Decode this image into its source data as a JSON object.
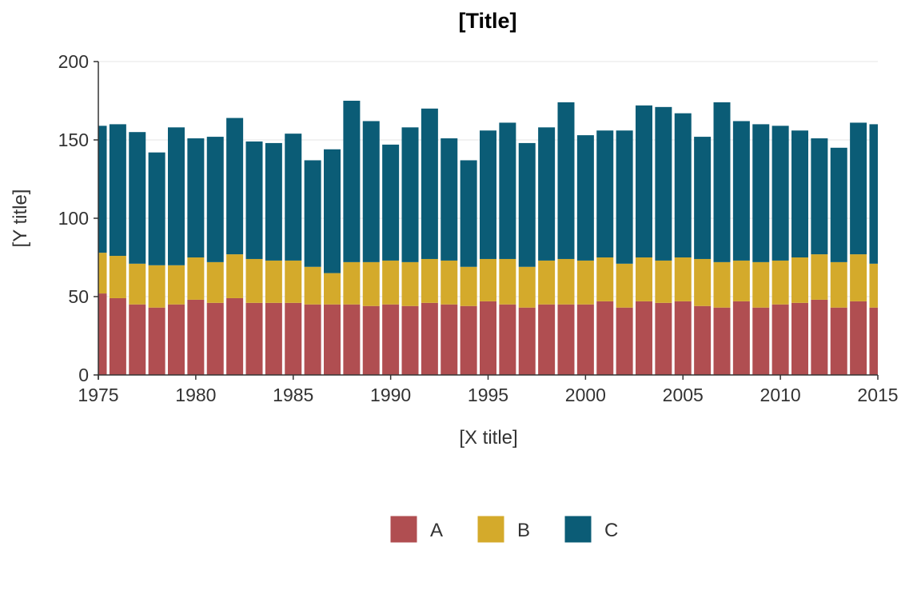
{
  "chart_data": {
    "type": "bar",
    "stacked": true,
    "title": "[Title]",
    "xlabel": "[X title]",
    "ylabel": "[Y title]",
    "x": [
      1975,
      1976,
      1977,
      1978,
      1979,
      1980,
      1981,
      1982,
      1983,
      1984,
      1985,
      1986,
      1987,
      1988,
      1989,
      1990,
      1991,
      1992,
      1993,
      1994,
      1995,
      1996,
      1997,
      1998,
      1999,
      2000,
      2001,
      2002,
      2003,
      2004,
      2005,
      2006,
      2007,
      2008,
      2009,
      2010,
      2011,
      2012,
      2013,
      2014,
      2015
    ],
    "xlim": [
      1975,
      2015
    ],
    "ylim": [
      0,
      200
    ],
    "x_ticks": [
      1975,
      1980,
      1985,
      1990,
      1995,
      2000,
      2005,
      2010,
      2015
    ],
    "y_ticks": [
      0,
      50,
      100,
      150,
      200
    ],
    "grid": "horizontal",
    "legend_position": "bottom",
    "series": [
      {
        "name": "A",
        "color": "#b04e51",
        "values": [
          52,
          49,
          45,
          43,
          45,
          48,
          46,
          49,
          46,
          46,
          46,
          45,
          45,
          45,
          44,
          45,
          44,
          46,
          45,
          44,
          47,
          45,
          43,
          45,
          45,
          45,
          47,
          43,
          47,
          46,
          47,
          44,
          43,
          47,
          43,
          45,
          46,
          48,
          43,
          47,
          43
        ]
      },
      {
        "name": "B",
        "color": "#d4aa2b",
        "values": [
          26,
          27,
          26,
          27,
          25,
          27,
          26,
          28,
          28,
          27,
          27,
          24,
          20,
          27,
          28,
          28,
          28,
          28,
          28,
          25,
          27,
          29,
          26,
          28,
          29,
          28,
          28,
          28,
          28,
          27,
          28,
          30,
          29,
          26,
          29,
          28,
          29,
          29,
          29,
          30,
          28
        ]
      },
      {
        "name": "C",
        "color": "#0b5c76",
        "values": [
          81,
          84,
          84,
          72,
          88,
          76,
          80,
          87,
          75,
          75,
          81,
          68,
          79,
          103,
          90,
          74,
          86,
          96,
          78,
          68,
          82,
          87,
          79,
          85,
          100,
          80,
          81,
          85,
          97,
          98,
          92,
          78,
          102,
          89,
          88,
          86,
          81,
          74,
          73,
          84,
          89
        ]
      }
    ]
  }
}
